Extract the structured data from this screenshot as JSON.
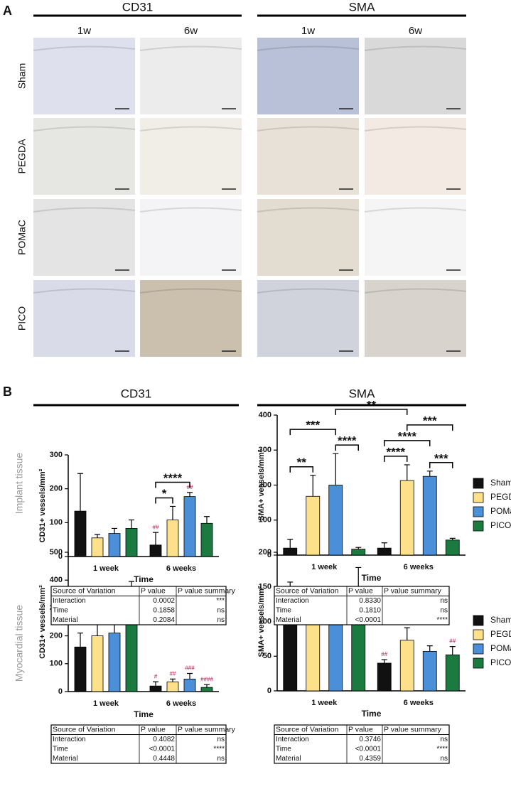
{
  "panel_labels": [
    "A",
    "B"
  ],
  "panel_a": {
    "columns": [
      {
        "title": "CD31",
        "subcolumns": [
          "1w",
          "6w"
        ]
      },
      {
        "title": "SMA",
        "subcolumns": [
          "1w",
          "6w"
        ]
      }
    ],
    "rows": [
      "Sham",
      "PEGDA",
      "POMaC",
      "PICO"
    ]
  },
  "panel_b": {
    "sections": [
      "CD31",
      "SMA"
    ],
    "row_labels": [
      "Implant tissue",
      "Myocardial tissue"
    ]
  },
  "chart_data": [
    {
      "type": "bar",
      "y_label": "CD31+ vessels/mm²",
      "x_label": "Time",
      "categories": [
        "1 week",
        "6 weeks"
      ],
      "ylim": [
        0,
        300
      ],
      "yticks": [
        0,
        100,
        200,
        300
      ],
      "series": [
        {
          "name": "Sham",
          "color": "#111111",
          "values": [
            134,
            34
          ],
          "errors": [
            111,
            37
          ],
          "annotations": [
            null,
            "##"
          ]
        },
        {
          "name": "PEGDA",
          "color": "#fde08a",
          "values": [
            55,
            108
          ],
          "errors": [
            10,
            40
          ],
          "annotations": [
            null,
            null
          ]
        },
        {
          "name": "POMaC",
          "color": "#4a8fd8",
          "values": [
            68,
            177
          ],
          "errors": [
            15,
            12
          ],
          "annotations": [
            null,
            "##"
          ]
        },
        {
          "name": "PICO",
          "color": "#1a7a40",
          "values": [
            83,
            98
          ],
          "errors": [
            25,
            20
          ],
          "annotations": [
            null,
            null
          ]
        }
      ],
      "brackets": [
        {
          "label": "*",
          "from": [
            1,
            0
          ],
          "to": [
            1,
            1
          ]
        },
        {
          "label": "****",
          "from": [
            1,
            0
          ],
          "to": [
            1,
            2
          ]
        }
      ]
    },
    {
      "type": "bar",
      "y_label": "SMA+ vessels/mm²",
      "x_label": "Time",
      "categories": [
        "1 week",
        "6 weeks"
      ],
      "ylim": [
        0,
        400
      ],
      "yticks": [
        0,
        100,
        200,
        300,
        400
      ],
      "legend": "right",
      "series": [
        {
          "name": "Sham",
          "color": "#111111",
          "values": [
            20,
            20
          ],
          "errors": [
            25,
            15
          ],
          "annotations": [
            null,
            null
          ]
        },
        {
          "name": "PEGDA",
          "color": "#fde08a",
          "values": [
            168,
            213
          ],
          "errors": [
            60,
            45
          ],
          "annotations": [
            null,
            null
          ]
        },
        {
          "name": "POMaC",
          "color": "#4a8fd8",
          "values": [
            200,
            225
          ],
          "errors": [
            90,
            15
          ],
          "annotations": [
            null,
            null
          ]
        },
        {
          "name": "PICO",
          "color": "#1a7a40",
          "values": [
            17,
            43
          ],
          "errors": [
            5,
            5
          ],
          "annotations": [
            null,
            null
          ]
        }
      ],
      "brackets": [
        {
          "label": "**",
          "from": [
            0,
            0
          ],
          "to": [
            0,
            1
          ]
        },
        {
          "label": "****",
          "from": [
            0,
            2
          ],
          "to": [
            0,
            3
          ]
        },
        {
          "label": "***",
          "from": [
            0,
            0
          ],
          "to": [
            0,
            2
          ]
        },
        {
          "label": "****",
          "from": [
            1,
            0
          ],
          "to": [
            1,
            1
          ]
        },
        {
          "label": "***",
          "from": [
            1,
            2
          ],
          "to": [
            1,
            3
          ]
        },
        {
          "label": "****",
          "from": [
            1,
            0
          ],
          "to": [
            1,
            2
          ]
        },
        {
          "label": "***",
          "from": [
            1,
            1
          ],
          "to": [
            1,
            3
          ]
        },
        {
          "label": "**",
          "from": [
            0,
            2
          ],
          "to": [
            1,
            1
          ]
        }
      ]
    },
    {
      "type": "bar",
      "y_label": "CD31+ vessels/mm²",
      "x_label": "Time",
      "categories": [
        "1 week",
        "6 weeks"
      ],
      "ylim": [
        0,
        500
      ],
      "yticks": [
        0,
        100,
        200,
        300,
        400,
        500
      ],
      "series": [
        {
          "name": "Sham",
          "color": "#111111",
          "values": [
            160,
            20
          ],
          "errors": [
            50,
            15
          ],
          "annotations": [
            null,
            "#"
          ]
        },
        {
          "name": "PEGDA",
          "color": "#fde08a",
          "values": [
            200,
            35
          ],
          "errors": [
            50,
            10
          ],
          "annotations": [
            null,
            "##"
          ]
        },
        {
          "name": "POMaC",
          "color": "#4a8fd8",
          "values": [
            210,
            45
          ],
          "errors": [
            70,
            20
          ],
          "annotations": [
            null,
            "###"
          ]
        },
        {
          "name": "PICO",
          "color": "#1a7a40",
          "values": [
            265,
            15
          ],
          "errors": [
            130,
            10
          ],
          "annotations": [
            null,
            "####"
          ]
        }
      ],
      "brackets": []
    },
    {
      "type": "bar",
      "y_label": "SMA+ vessels/mm²",
      "x_label": "Time",
      "categories": [
        "1 week",
        "6 weeks"
      ],
      "ylim": [
        0,
        200
      ],
      "yticks": [
        0,
        50,
        100,
        150,
        200
      ],
      "legend": "right",
      "series": [
        {
          "name": "Sham",
          "color": "#111111",
          "values": [
            115,
            40
          ],
          "errors": [
            42,
            5
          ],
          "annotations": [
            null,
            "##"
          ]
        },
        {
          "name": "PEGDA",
          "color": "#fde08a",
          "values": [
            117,
            73
          ],
          "errors": [
            15,
            18
          ],
          "annotations": [
            null,
            null
          ]
        },
        {
          "name": "POMaC",
          "color": "#4a8fd8",
          "values": [
            102,
            57
          ],
          "errors": [
            28,
            8
          ],
          "annotations": [
            null,
            null
          ]
        },
        {
          "name": "PICO",
          "color": "#1a7a40",
          "values": [
            130,
            52
          ],
          "errors": [
            48,
            12
          ],
          "annotations": [
            null,
            "##"
          ]
        }
      ],
      "brackets": []
    }
  ],
  "tables": [
    {
      "header": [
        "Source of Variation",
        "P value",
        "P value summary"
      ],
      "rows": [
        [
          "Interaction",
          "0.0002",
          "***"
        ],
        [
          "Time",
          "0.1858",
          "ns"
        ],
        [
          "Material",
          "0.2084",
          "ns"
        ]
      ]
    },
    {
      "header": [
        "Source of Variation",
        "P value",
        "P value summary"
      ],
      "rows": [
        [
          "Interaction",
          "0.8330",
          "ns"
        ],
        [
          "Time",
          "0.1810",
          "ns"
        ],
        [
          "Material",
          "<0.0001",
          "****"
        ]
      ]
    },
    {
      "header": [
        "Source of Variation",
        "P value",
        "P value summary"
      ],
      "rows": [
        [
          "Interaction",
          "0.4082",
          "ns"
        ],
        [
          "Time",
          "<0.0001",
          "****"
        ],
        [
          "Material",
          "0.4448",
          "ns"
        ]
      ]
    },
    {
      "header": [
        "Source of Variation",
        "P value",
        "P value summary"
      ],
      "rows": [
        [
          "Interaction",
          "0.3746",
          "ns"
        ],
        [
          "Time",
          "<0.0001",
          "****"
        ],
        [
          "Material",
          "0.4359",
          "ns"
        ]
      ]
    }
  ]
}
